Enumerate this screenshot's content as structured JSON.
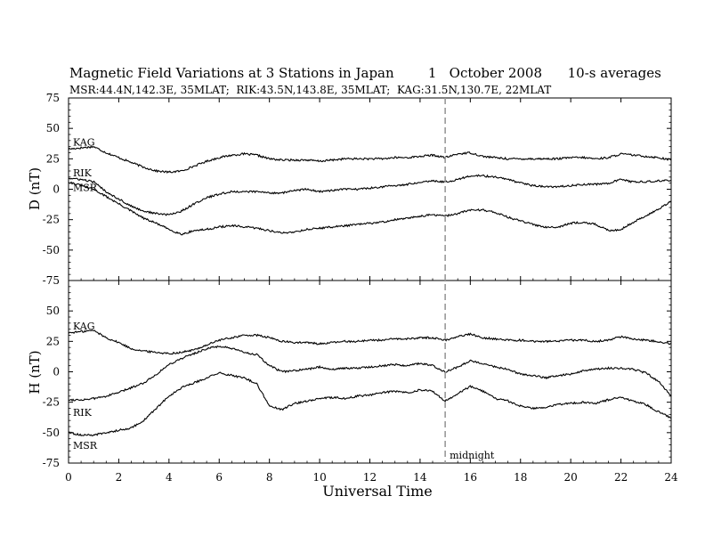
{
  "header": {
    "title": "Magnetic Field Variations at 3 Stations in Japan",
    "date_day": "1",
    "date_month_year": "October 2008",
    "averages": "10-s averages",
    "stations": "MSR:44.4N,142.3E, 35MLAT;  RIK:43.5N,143.8E, 35MLAT;  KAG:31.5N,130.7E, 22MLAT"
  },
  "colors": {
    "line": "#000000",
    "midnight": "#999999"
  },
  "chart_data": [
    {
      "type": "line",
      "panel": "top",
      "ylabel": "D (nT)",
      "xlabel": "",
      "ylim": [
        -75,
        75
      ],
      "yticks": [
        75,
        50,
        25,
        0,
        -25,
        -50,
        -75
      ],
      "xlim": [
        0,
        24
      ],
      "series": [
        {
          "name": "KAG",
          "x": [
            0,
            0.5,
            1,
            1.5,
            2,
            2.5,
            3,
            3.5,
            4,
            4.5,
            5,
            5.5,
            6,
            6.5,
            7,
            7.5,
            8,
            8.5,
            9,
            9.5,
            10,
            10.5,
            11,
            11.5,
            12,
            12.5,
            13,
            13.5,
            14,
            14.5,
            15,
            15.5,
            16,
            16.5,
            17,
            17.5,
            18,
            18.5,
            19,
            19.5,
            20,
            20.5,
            21,
            21.5,
            22,
            22.5,
            23,
            23.5,
            24
          ],
          "values": [
            33,
            34,
            35,
            30,
            26,
            22,
            18,
            15,
            14,
            15,
            19,
            23,
            26,
            28,
            29,
            28,
            25,
            24,
            24,
            24,
            23,
            24,
            25,
            25,
            25,
            25,
            26,
            26,
            27,
            28,
            26,
            29,
            30,
            27,
            26,
            25,
            25,
            25,
            25,
            25,
            26,
            26,
            25,
            26,
            29,
            28,
            27,
            26,
            24
          ]
        },
        {
          "name": "RIK",
          "x": [
            0,
            0.5,
            1,
            1.5,
            2,
            2.5,
            3,
            3.5,
            4,
            4.5,
            5,
            5.5,
            6,
            6.5,
            7,
            7.5,
            8,
            8.5,
            9,
            9.5,
            10,
            10.5,
            11,
            11.5,
            12,
            12.5,
            13,
            13.5,
            14,
            14.5,
            15,
            15.5,
            16,
            16.5,
            17,
            17.5,
            18,
            18.5,
            19,
            19.5,
            20,
            20.5,
            21,
            21.5,
            22,
            22.5,
            23,
            23.5,
            24
          ],
          "values": [
            9,
            8,
            6,
            -2,
            -8,
            -14,
            -18,
            -20,
            -21,
            -18,
            -12,
            -7,
            -4,
            -2,
            -2,
            -2,
            -3,
            -3,
            -1,
            0,
            -2,
            -1,
            0,
            0,
            1,
            2,
            3,
            4,
            6,
            7,
            6,
            8,
            11,
            11,
            10,
            8,
            5,
            3,
            2,
            2,
            3,
            4,
            4,
            5,
            8,
            6,
            6,
            7,
            7
          ]
        },
        {
          "name": "MSR",
          "x": [
            0,
            0.5,
            1,
            1.5,
            2,
            2.5,
            3,
            3.5,
            4,
            4.5,
            5,
            5.5,
            6,
            6.5,
            7,
            7.5,
            8,
            8.5,
            9,
            9.5,
            10,
            10.5,
            11,
            11.5,
            12,
            12.5,
            13,
            13.5,
            14,
            14.5,
            15,
            15.5,
            16,
            16.5,
            17,
            17.5,
            18,
            18.5,
            19,
            19.5,
            20,
            20.5,
            21,
            21.5,
            22,
            22.5,
            23,
            23.5,
            24
          ],
          "values": [
            6,
            3,
            0,
            -6,
            -12,
            -18,
            -24,
            -28,
            -33,
            -37,
            -34,
            -33,
            -31,
            -30,
            -31,
            -32,
            -34,
            -36,
            -35,
            -33,
            -32,
            -31,
            -30,
            -29,
            -28,
            -27,
            -25,
            -24,
            -22,
            -21,
            -22,
            -20,
            -17,
            -17,
            -19,
            -23,
            -26,
            -29,
            -31,
            -31,
            -28,
            -27,
            -29,
            -34,
            -33,
            -27,
            -22,
            -16,
            -10
          ]
        }
      ],
      "labels": [
        "KAG",
        "RIK",
        "MSR"
      ]
    },
    {
      "type": "line",
      "panel": "bottom",
      "ylabel": "H (nT)",
      "xlabel": "Universal Time",
      "ylim": [
        -75,
        75
      ],
      "yticks": [
        50,
        25,
        0,
        -25,
        -50,
        -75
      ],
      "xlim": [
        0,
        24
      ],
      "xticks": [
        0,
        2,
        4,
        6,
        8,
        10,
        12,
        14,
        16,
        18,
        20,
        22,
        24
      ],
      "series": [
        {
          "name": "KAG",
          "x": [
            0,
            0.5,
            1,
            1.5,
            2,
            2.5,
            3,
            3.5,
            4,
            4.5,
            5,
            5.5,
            6,
            6.5,
            7,
            7.5,
            8,
            8.5,
            9,
            9.5,
            10,
            10.5,
            11,
            11.5,
            12,
            12.5,
            13,
            13.5,
            14,
            14.5,
            15,
            15.5,
            16,
            16.5,
            17,
            17.5,
            18,
            18.5,
            19,
            19.5,
            20,
            20.5,
            21,
            21.5,
            22,
            22.5,
            23,
            23.5,
            24
          ],
          "values": [
            32,
            33,
            34,
            28,
            24,
            19,
            17,
            16,
            15,
            16,
            18,
            22,
            26,
            28,
            30,
            30,
            28,
            25,
            24,
            24,
            23,
            24,
            25,
            25,
            26,
            26,
            27,
            27,
            28,
            28,
            26,
            29,
            31,
            28,
            27,
            26,
            26,
            25,
            25,
            25,
            26,
            26,
            25,
            26,
            29,
            27,
            26,
            25,
            23
          ]
        },
        {
          "name": "RIK",
          "x": [
            0,
            0.5,
            1,
            1.5,
            2,
            2.5,
            3,
            3.5,
            4,
            4.5,
            5,
            5.5,
            6,
            6.5,
            7,
            7.5,
            8,
            8.5,
            9,
            9.5,
            10,
            10.5,
            11,
            11.5,
            12,
            12.5,
            13,
            13.5,
            14,
            14.5,
            15,
            15.5,
            16,
            16.5,
            17,
            17.5,
            18,
            18.5,
            19,
            19.5,
            20,
            20.5,
            21,
            21.5,
            22,
            22.5,
            23,
            23.5,
            24
          ],
          "values": [
            -23,
            -23,
            -22,
            -20,
            -17,
            -13,
            -9,
            -2,
            6,
            11,
            15,
            19,
            21,
            19,
            16,
            14,
            5,
            0,
            1,
            2,
            4,
            2,
            3,
            3,
            4,
            5,
            6,
            5,
            7,
            5,
            0,
            4,
            9,
            7,
            4,
            2,
            -2,
            -3,
            -5,
            -3,
            -2,
            1,
            2,
            3,
            3,
            2,
            -1,
            -8,
            -20
          ]
        },
        {
          "name": "MSR",
          "x": [
            0,
            0.5,
            1,
            1.5,
            2,
            2.5,
            3,
            3.5,
            4,
            4.5,
            5,
            5.5,
            6,
            6.5,
            7,
            7.5,
            8,
            8.5,
            9,
            9.5,
            10,
            10.5,
            11,
            11.5,
            12,
            12.5,
            13,
            13.5,
            14,
            14.5,
            15,
            15.5,
            16,
            16.5,
            17,
            17.5,
            18,
            18.5,
            19,
            19.5,
            20,
            20.5,
            21,
            21.5,
            22,
            22.5,
            23,
            23.5,
            24
          ],
          "values": [
            -50,
            -52,
            -52,
            -50,
            -48,
            -46,
            -40,
            -30,
            -20,
            -13,
            -9,
            -5,
            -1,
            -3,
            -5,
            -10,
            -28,
            -31,
            -26,
            -24,
            -22,
            -21,
            -22,
            -20,
            -19,
            -17,
            -16,
            -17,
            -15,
            -16,
            -24,
            -18,
            -12,
            -16,
            -22,
            -24,
            -28,
            -30,
            -29,
            -27,
            -26,
            -25,
            -26,
            -23,
            -21,
            -24,
            -27,
            -33,
            -38
          ]
        }
      ],
      "labels": [
        "KAG",
        "RIK",
        "MSR"
      ],
      "annotations": [
        {
          "text": "midnight",
          "x": 15
        }
      ]
    }
  ]
}
